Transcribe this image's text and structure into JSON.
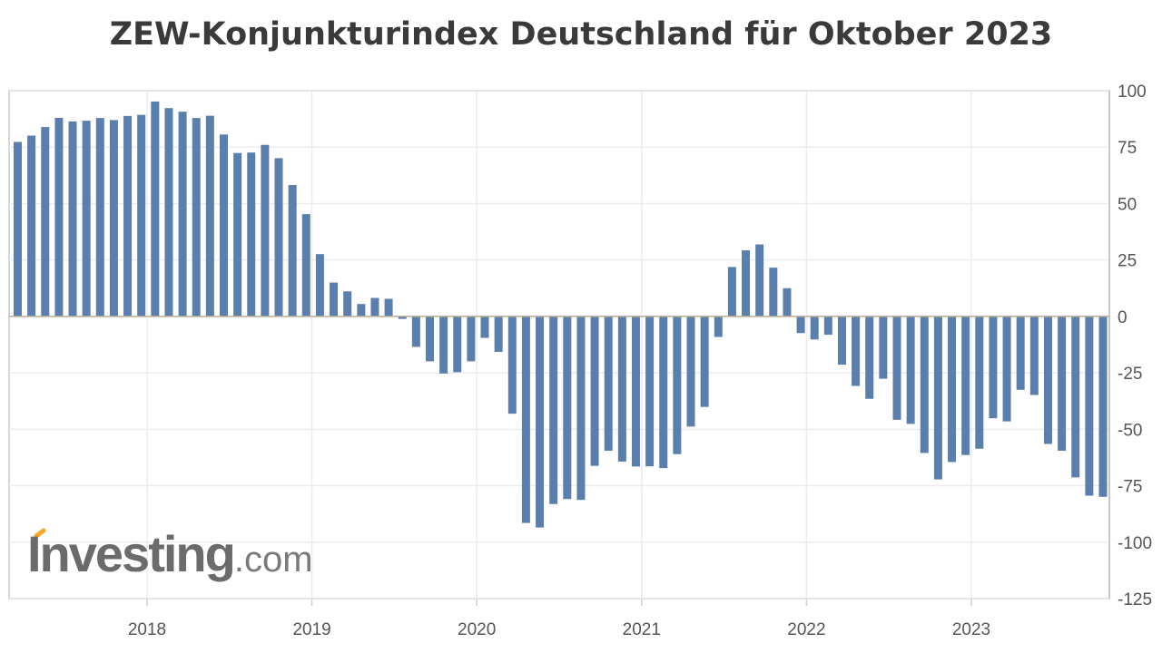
{
  "chart_data": {
    "type": "bar",
    "title": "ZEW-Konjunkturindex Deutschland für Oktober 2023",
    "xlabel": "",
    "ylabel": "",
    "ylim": [
      -125,
      100
    ],
    "yticks": [
      100,
      75,
      50,
      25,
      0,
      -25,
      -50,
      -75,
      -100,
      -125
    ],
    "xticks": [
      "2018",
      "2019",
      "2020",
      "2021",
      "2022",
      "2023"
    ],
    "grid": true,
    "y_axis_side": "right",
    "bar_color": "#5b7fad",
    "first_month": "2017-03",
    "last_month": "2023-10",
    "values": [
      77.3,
      80.1,
      83.9,
      88.0,
      86.4,
      86.7,
      87.9,
      87.0,
      88.8,
      89.3,
      95.2,
      92.3,
      90.7,
      87.9,
      88.9,
      80.6,
      72.4,
      72.6,
      76.0,
      70.1,
      58.2,
      45.3,
      27.6,
      15.0,
      11.1,
      5.5,
      8.2,
      7.8,
      -1.1,
      -13.5,
      -19.9,
      -25.3,
      -24.7,
      -19.9,
      -9.5,
      -15.7,
      -43.1,
      -91.5,
      -93.5,
      -83.1,
      -80.9,
      -81.3,
      -66.2,
      -59.5,
      -64.3,
      -66.5,
      -66.4,
      -67.2,
      -61.0,
      -48.8,
      -40.1,
      -9.1,
      21.9,
      29.3,
      31.9,
      21.6,
      12.5,
      -7.4,
      -10.2,
      -8.1,
      -21.4,
      -30.8,
      -36.5,
      -27.6,
      -45.8,
      -47.6,
      -60.5,
      -72.2,
      -64.5,
      -61.4,
      -58.6,
      -45.1,
      -46.5,
      -32.5,
      -34.8,
      -56.5,
      -59.5,
      -71.3,
      -79.4,
      -79.9
    ]
  },
  "watermark": {
    "main": "Investing",
    "suffix": ".com",
    "accent_color": "#f5a623"
  }
}
